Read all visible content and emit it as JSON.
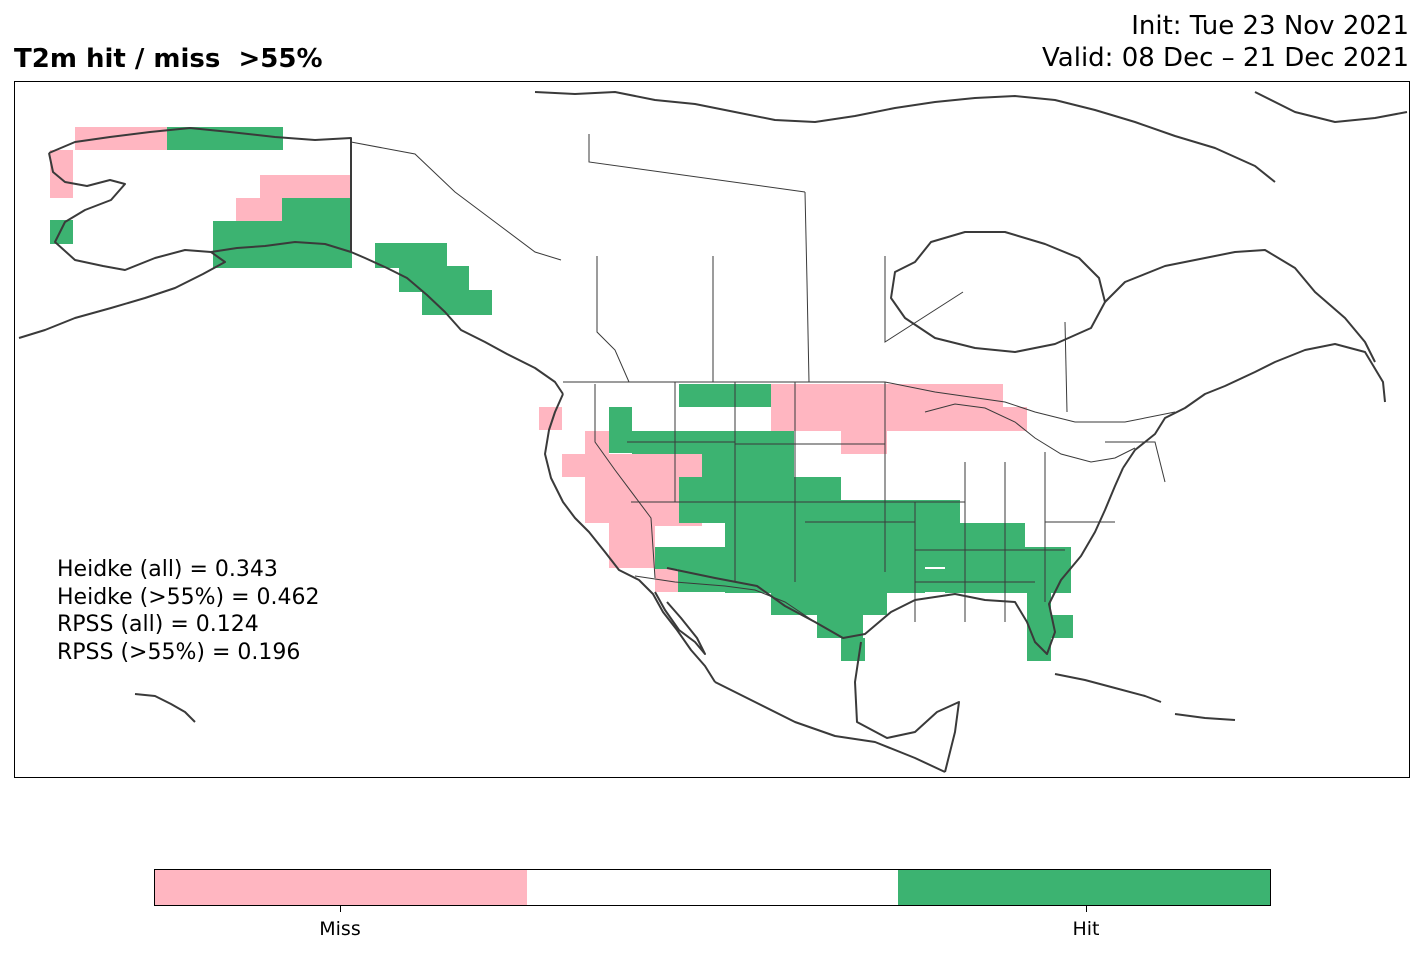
{
  "title": "T2m hit / miss  >55%",
  "init_label": "Init: Tue 23 Nov 2021",
  "valid_label": "Valid: 08 Dec – 21 Dec 2021",
  "stats": [
    "Heidke (all) = 0.343",
    "Heidke (>55%) = 0.462",
    "RPSS (all) = 0.124",
    "RPSS (>55%) = 0.196"
  ],
  "colors": {
    "miss": "#ffb6c1",
    "neutral": "#ffffff",
    "hit": "#3cb371",
    "lines": "#3a3a3a"
  },
  "legend": {
    "segments": [
      "miss",
      "neutral",
      "hit"
    ],
    "labels": [
      "Miss",
      "Hit"
    ]
  },
  "icons": [
    "map-grid",
    "coastline",
    "state-borders",
    "colorbar"
  ]
}
